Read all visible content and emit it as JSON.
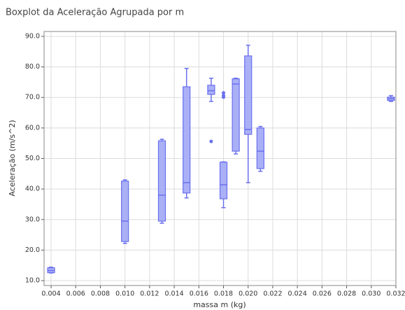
{
  "chart_data": {
    "type": "box",
    "title": "Boxplot da Aceleração Agrupada por m",
    "xlabel": "massa m (kg)",
    "ylabel": "Aceleração (m/s^2)",
    "color": "#aab0f6",
    "edge_color": "#6a70ee",
    "grid": true,
    "xlim": [
      0.00343,
      0.032
    ],
    "ylim": [
      8.4,
      91.6
    ],
    "xticks": [
      0.004,
      0.006,
      0.008,
      {
        "value": 0.01,
        "label": "0.010"
      },
      0.012,
      0.014,
      0.016,
      0.018,
      {
        "value": 0.02,
        "label": "0.020"
      },
      0.022,
      0.024,
      0.026,
      0.028,
      {
        "value": 0.03,
        "label": "0.030"
      },
      0.032
    ],
    "yticks": [
      {
        "value": 10,
        "label": "10.0"
      },
      {
        "value": 20,
        "label": "20.0"
      },
      {
        "value": 30,
        "label": "30.0"
      },
      {
        "value": 40,
        "label": "40.0"
      },
      {
        "value": 50,
        "label": "50.0"
      },
      {
        "value": 60,
        "label": "60.0"
      },
      {
        "value": 70,
        "label": "70.0"
      },
      {
        "value": 80,
        "label": "80.0"
      },
      {
        "value": 90,
        "label": "90.0"
      }
    ],
    "boxes": [
      {
        "x": 0.004,
        "min": 12.5,
        "q1": 12.6,
        "median": 13.3,
        "q3": 14.2,
        "max": 14.4,
        "outliers": []
      },
      {
        "x": 0.01,
        "min": 22.2,
        "q1": 22.8,
        "median": 29.5,
        "q3": 42.6,
        "max": 43.0,
        "outliers": []
      },
      {
        "x": 0.013,
        "min": 28.8,
        "q1": 29.5,
        "median": 38.0,
        "q3": 55.8,
        "max": 56.3,
        "outliers": []
      },
      {
        "x": 0.015,
        "min": 37.1,
        "q1": 38.7,
        "median": 42.1,
        "q3": 73.5,
        "max": 79.5,
        "outliers": []
      },
      {
        "x": 0.017,
        "min": 68.7,
        "q1": 71.0,
        "median": 72.2,
        "q3": 74.0,
        "max": 76.3,
        "outliers": [
          55.6
        ]
      },
      {
        "x": 0.018,
        "min": 33.9,
        "q1": 36.8,
        "median": 41.4,
        "q3": 48.8,
        "max": 48.9,
        "outliers": [
          71.5,
          70.6,
          70.1
        ]
      },
      {
        "x": 0.019,
        "min": 51.5,
        "q1": 52.4,
        "median": 74.4,
        "q3": 76.1,
        "max": 76.3,
        "outliers": []
      },
      {
        "x": 0.02,
        "min": 42.1,
        "q1": 57.9,
        "median": 59.5,
        "q3": 83.6,
        "max": 87.1,
        "outliers": []
      },
      {
        "x": 0.021,
        "min": 45.8,
        "q1": 46.7,
        "median": 52.4,
        "q3": 60.0,
        "max": 60.5,
        "outliers": []
      },
      {
        "x": 0.0316,
        "min": 68.7,
        "q1": 69.0,
        "median": 69.6,
        "q3": 70.1,
        "max": 70.6,
        "outliers": []
      }
    ]
  }
}
